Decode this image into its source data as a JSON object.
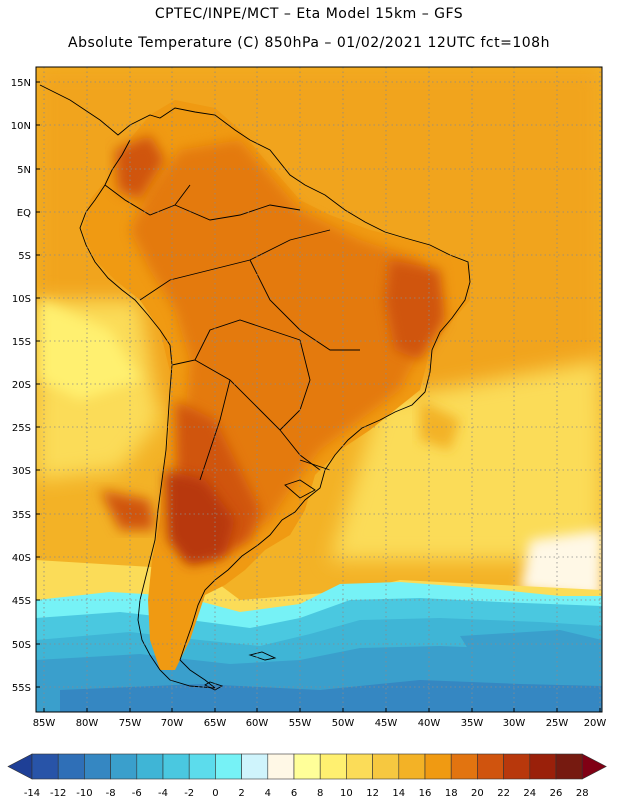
{
  "header": {
    "line1": "CPTEC/INPE/MCT –  Eta Model 15km – GFS",
    "line2": "Absolute Temperature (C) 850hPa – 01/02/2021 12UTC fct=108h"
  },
  "map": {
    "lat_labels": [
      "15N",
      "10N",
      "5N",
      "EQ",
      "5S",
      "10S",
      "15S",
      "20S",
      "25S",
      "30S",
      "35S",
      "40S",
      "45S",
      "50S",
      "55S"
    ],
    "lon_labels": [
      "85W",
      "80W",
      "75W",
      "70W",
      "65W",
      "60W",
      "55W",
      "50W",
      "45W",
      "40W",
      "35W",
      "30W",
      "25W",
      "20W"
    ]
  },
  "colorbar": {
    "tick_labels": [
      "-14",
      "-12",
      "-10",
      "-8",
      "-6",
      "-4",
      "-2",
      "0",
      "2",
      "4",
      "6",
      "8",
      "10",
      "12",
      "14",
      "16",
      "18",
      "20",
      "22",
      "24",
      "26",
      "28"
    ],
    "colors": [
      "#1e3f96",
      "#2854a8",
      "#2f6fb7",
      "#3587c2",
      "#3a9fcc",
      "#3fb5d6",
      "#4ac8e0",
      "#5cdcec",
      "#76f2f6",
      "#cff4fc",
      "#fff8e6",
      "#ffff99",
      "#fff070",
      "#fbdc58",
      "#f6c840",
      "#f3b226",
      "#f09a12",
      "#e27410",
      "#d0540e",
      "#b8380c",
      "#9a200a",
      "#761a10",
      "#800014"
    ]
  }
}
